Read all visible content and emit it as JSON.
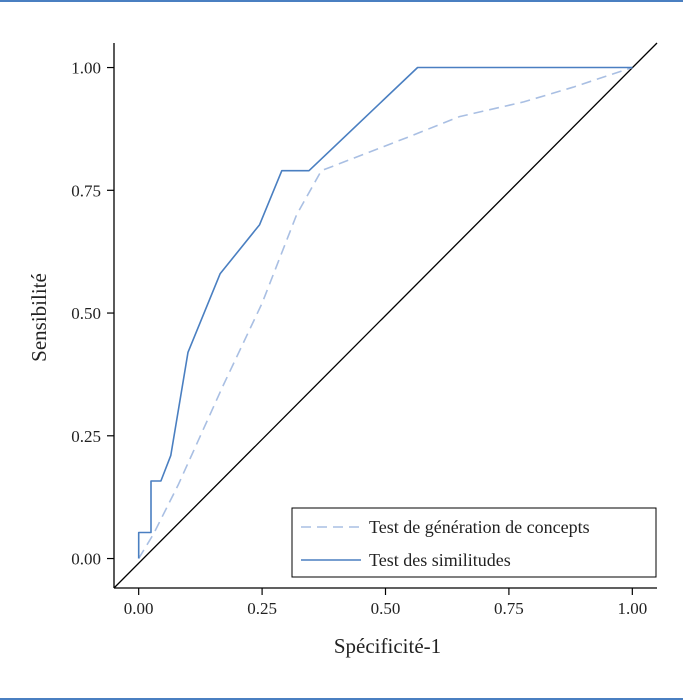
{
  "colors": {
    "frame": "#4a7fc1",
    "series_solid": "#4a7fc1",
    "series_dashed": "#a9bfe3",
    "axis": "#000000"
  },
  "chart_data": {
    "type": "line",
    "xlabel": "Spécificité-1",
    "ylabel": "Sensibilité",
    "xlim": [
      -0.05,
      1.05
    ],
    "ylim": [
      -0.06,
      1.05
    ],
    "xticks": [
      0.0,
      0.25,
      0.5,
      0.75,
      1.0
    ],
    "yticks": [
      0.0,
      0.25,
      0.5,
      0.75,
      1.0
    ],
    "xtick_labels": [
      "0.00",
      "0.25",
      "0.50",
      "0.75",
      "1.00"
    ],
    "ytick_labels": [
      "0.00",
      "0.25",
      "0.50",
      "0.75",
      "1.00"
    ],
    "grid": false,
    "legend_position": "bottom-right",
    "reference_line": {
      "x": [
        -0.05,
        1.05
      ],
      "y": [
        -0.06,
        1.05
      ]
    },
    "series": [
      {
        "name": "Test de génération de concepts",
        "style": "dashed",
        "color": "#a9bfe3",
        "x": [
          0.0,
          0.03,
          0.08,
          0.17,
          0.25,
          0.32,
          0.37,
          0.55,
          0.65,
          0.78,
          0.88,
          1.0
        ],
        "y": [
          0.0,
          0.05,
          0.15,
          0.35,
          0.52,
          0.7,
          0.79,
          0.86,
          0.9,
          0.93,
          0.96,
          1.0
        ]
      },
      {
        "name": "Test des similitudes",
        "style": "solid",
        "color": "#4a7fc1",
        "x": [
          0.0,
          0.0,
          0.025,
          0.025,
          0.045,
          0.045,
          0.065,
          0.1,
          0.165,
          0.245,
          0.29,
          0.345,
          0.565,
          1.0
        ],
        "y": [
          0.0,
          0.053,
          0.053,
          0.158,
          0.158,
          0.158,
          0.21,
          0.42,
          0.58,
          0.68,
          0.79,
          0.79,
          1.0,
          1.0
        ]
      }
    ]
  }
}
